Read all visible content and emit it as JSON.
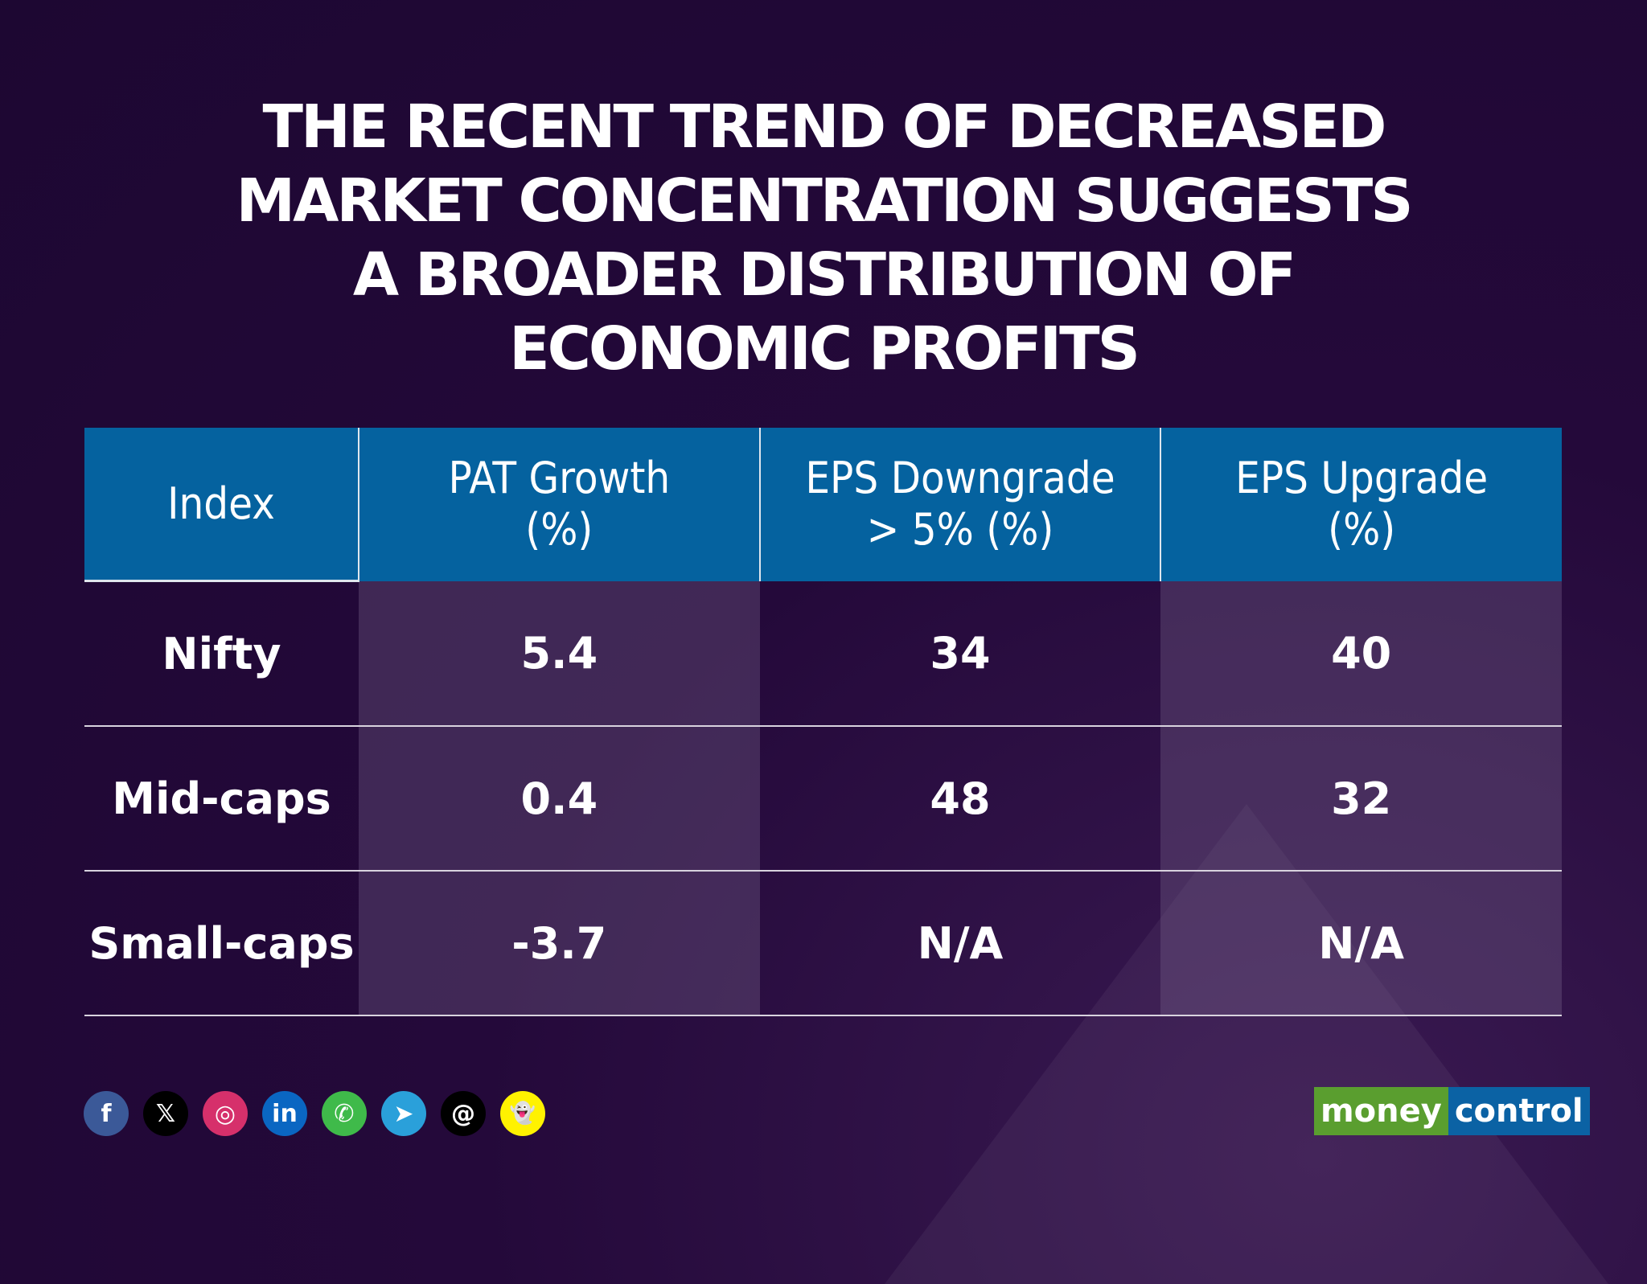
{
  "title_lines": [
    "THE RECENT TREND OF DECREASED",
    "MARKET CONCENTRATION SUGGESTS",
    "A BROADER DISTRIBUTION OF",
    "ECONOMIC PROFITS"
  ],
  "table": {
    "headers": [
      [
        "Index"
      ],
      [
        "PAT Growth",
        "(%)"
      ],
      [
        "EPS Downgrade",
        "> 5% (%)"
      ],
      [
        "EPS Upgrade",
        "(%)"
      ]
    ],
    "rows": [
      [
        "Nifty",
        "5.4",
        "34",
        "40"
      ],
      [
        "Mid-caps",
        "0.4",
        "48",
        "32"
      ],
      [
        "Small-caps",
        "-3.7",
        "N/A",
        "N/A"
      ]
    ]
  },
  "social_icons": [
    {
      "name": "facebook-icon",
      "glyph": "f",
      "color": "#3b5998"
    },
    {
      "name": "x-icon",
      "glyph": "𝕏",
      "color": "#000000"
    },
    {
      "name": "instagram-icon",
      "glyph": "◎",
      "color": "#d6306b"
    },
    {
      "name": "linkedin-icon",
      "glyph": "in",
      "color": "#0a66c2"
    },
    {
      "name": "whatsapp-icon",
      "glyph": "✆",
      "color": "#3fba4a"
    },
    {
      "name": "telegram-icon",
      "glyph": "➤",
      "color": "#2aa0da"
    },
    {
      "name": "threads-icon",
      "glyph": "@",
      "color": "#000000"
    },
    {
      "name": "snapchat-icon",
      "glyph": "👻",
      "color": "#fff200"
    }
  ],
  "logo": {
    "part1": "money",
    "part2": "control",
    "color1": "#5a9e2f",
    "color2": "#0b62a4"
  },
  "colors": {
    "header": "#05629f",
    "background": "#200835"
  }
}
